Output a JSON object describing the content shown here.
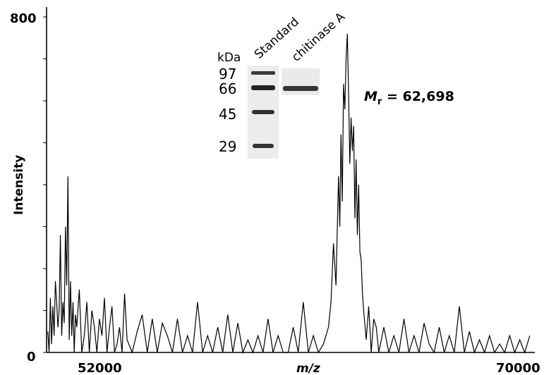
{
  "chart_data": {
    "type": "line",
    "title": "",
    "xlabel": "m/z",
    "ylabel": "Intensity",
    "xlim": [
      50800,
      70200
    ],
    "ylim": [
      0,
      800
    ],
    "xtick_labels": [
      "52000",
      "70000"
    ],
    "xticks": [
      52000,
      70000
    ],
    "ytick_labels": [
      "0",
      "800"
    ],
    "yticks": [
      0,
      800
    ],
    "grid": false,
    "series": [
      {
        "name": "",
        "color": "#000000",
        "x": [
          50850,
          50900,
          50950,
          51000,
          51050,
          51100,
          51150,
          51200,
          51250,
          51300,
          51350,
          51400,
          51450,
          51500,
          51550,
          51600,
          51650,
          51700,
          51750,
          51800,
          51850,
          51900,
          51950,
          52000,
          52100,
          52200,
          52300,
          52400,
          52500,
          52600,
          52700,
          52800,
          52900,
          53000,
          53100,
          53200,
          53300,
          53400,
          53500,
          53600,
          53700,
          53800,
          53900,
          54000,
          54200,
          54400,
          54600,
          54800,
          55000,
          55200,
          55400,
          55600,
          55800,
          56000,
          56200,
          56400,
          56600,
          56800,
          57000,
          57200,
          57400,
          57600,
          57800,
          58000,
          58200,
          58400,
          58600,
          58800,
          59000,
          59200,
          59400,
          59600,
          59800,
          60000,
          60200,
          60400,
          60600,
          60800,
          61000,
          61200,
          61400,
          61600,
          61800,
          62000,
          62100,
          62200,
          62300,
          62400,
          62450,
          62500,
          62550,
          62600,
          62650,
          62700,
          62750,
          62800,
          62850,
          62900,
          62950,
          63000,
          63050,
          63100,
          63150,
          63200,
          63250,
          63300,
          63350,
          63400,
          63500,
          63600,
          63700,
          63800,
          63900,
          64000,
          64200,
          64400,
          64600,
          64800,
          65000,
          65200,
          65400,
          65600,
          65800,
          66000,
          66200,
          66400,
          66600,
          66800,
          67000,
          67200,
          67400,
          67600,
          67800,
          68000,
          68200,
          68400,
          68600,
          68800,
          69000,
          69200,
          69400,
          69600,
          69800,
          70000
        ],
        "y": [
          50,
          0,
          130,
          20,
          110,
          40,
          170,
          120,
          60,
          100,
          280,
          40,
          120,
          70,
          300,
          160,
          420,
          30,
          170,
          40,
          120,
          0,
          90,
          60,
          150,
          0,
          40,
          120,
          0,
          100,
          60,
          0,
          80,
          40,
          130,
          0,
          60,
          110,
          0,
          20,
          60,
          0,
          140,
          30,
          0,
          50,
          90,
          0,
          80,
          0,
          70,
          40,
          0,
          80,
          0,
          40,
          0,
          120,
          0,
          40,
          0,
          60,
          0,
          90,
          0,
          70,
          0,
          30,
          0,
          40,
          0,
          80,
          0,
          40,
          0,
          0,
          60,
          0,
          120,
          0,
          40,
          0,
          20,
          60,
          120,
          260,
          160,
          420,
          300,
          520,
          360,
          640,
          580,
          700,
          760,
          620,
          450,
          560,
          480,
          540,
          320,
          460,
          280,
          400,
          240,
          220,
          140,
          100,
          30,
          110,
          0,
          80,
          60,
          0,
          60,
          0,
          40,
          0,
          80,
          0,
          40,
          0,
          70,
          20,
          0,
          60,
          0,
          40,
          0,
          110,
          0,
          50,
          0,
          30,
          0,
          40,
          0,
          20,
          0,
          40,
          0,
          30,
          0,
          40
        ]
      }
    ],
    "annotation": {
      "text_m": "M",
      "text_sub": "r",
      "text_rest": " = 62,698"
    },
    "inset_gel": {
      "kda_label": "kDa",
      "lane_labels": [
        "Standard",
        "chitinase A"
      ],
      "markers": [
        "97",
        "66",
        "45",
        "29"
      ]
    }
  }
}
